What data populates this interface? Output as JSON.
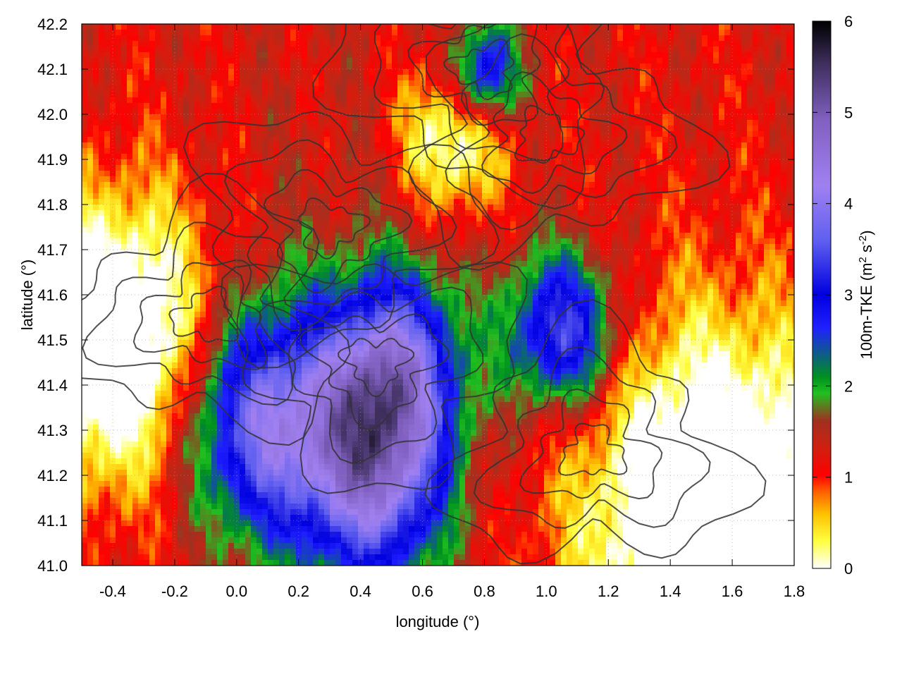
{
  "chart_data": {
    "type": "heatmap",
    "title": "",
    "xlabel": "longitude (°)",
    "ylabel": "latitude (°)",
    "xlim": [
      -0.5,
      1.8
    ],
    "ylim": [
      41.0,
      42.2
    ],
    "x_ticks": [
      "-0.4",
      "-0.2",
      "0.0",
      "0.2",
      "0.4",
      "0.6",
      "0.8",
      "1.0",
      "1.2",
      "1.4",
      "1.6",
      "1.8"
    ],
    "x_tick_values": [
      -0.4,
      -0.2,
      0.0,
      0.2,
      0.4,
      0.6,
      0.8,
      1.0,
      1.2,
      1.4,
      1.6,
      1.8
    ],
    "y_ticks": [
      "41.0",
      "41.1",
      "41.2",
      "41.3",
      "41.4",
      "41.5",
      "41.6",
      "41.7",
      "41.8",
      "41.9",
      "42.0",
      "42.1",
      "42.2"
    ],
    "y_tick_values": [
      41.0,
      41.1,
      41.2,
      41.3,
      41.4,
      41.5,
      41.6,
      41.7,
      41.8,
      41.9,
      42.0,
      42.1,
      42.2
    ],
    "grid": true,
    "colorbar": {
      "label_main": "100m-TKE (m",
      "label_sup1": "2",
      "label_mid": " s",
      "label_sup2": "-2",
      "label_end": ")",
      "range": [
        0,
        6
      ],
      "ticks": [
        "0",
        "1",
        "2",
        "3",
        "4",
        "5",
        "6"
      ],
      "tick_values": [
        0,
        1,
        2,
        3,
        4,
        5,
        6
      ],
      "colors": [
        "#ffffff",
        "#ffff40",
        "#ffc000",
        "#ff6000",
        "#ff0000",
        "#d02010",
        "#a03020",
        "#20c020",
        "#009020",
        "#2020ff",
        "#0000e0",
        "#6060f0",
        "#a080f0",
        "#8060c0",
        "#403060",
        "#000000"
      ],
      "color_stops": [
        0.0,
        0.05,
        0.1,
        0.14,
        0.17,
        0.22,
        0.27,
        0.32,
        0.35,
        0.44,
        0.5,
        0.6,
        0.7,
        0.82,
        0.92,
        1.0
      ]
    },
    "field_features": [
      {
        "lon": 0.1,
        "lat": 41.32,
        "value": 4.3,
        "spread": 0.18
      },
      {
        "lon": 0.45,
        "lat": 41.18,
        "value": 4.2,
        "spread": 0.16
      },
      {
        "lon": 0.5,
        "lat": 41.43,
        "value": 4.4,
        "spread": 0.15
      },
      {
        "lon": 1.05,
        "lat": 41.52,
        "value": 3.8,
        "spread": 0.12
      },
      {
        "lon": 0.8,
        "lat": 42.09,
        "value": 3.5,
        "spread": 0.08
      },
      {
        "lon": 0.4,
        "lat": 41.8,
        "value": 1.4,
        "spread": 0.35
      },
      {
        "lon": -0.38,
        "lat": 41.5,
        "value": -1.0,
        "spread": 0.22
      },
      {
        "lon": 1.55,
        "lat": 41.1,
        "value": -1.2,
        "spread": 0.3
      },
      {
        "lon": 0.7,
        "lat": 41.95,
        "value": -0.4,
        "spread": 0.12
      }
    ]
  }
}
